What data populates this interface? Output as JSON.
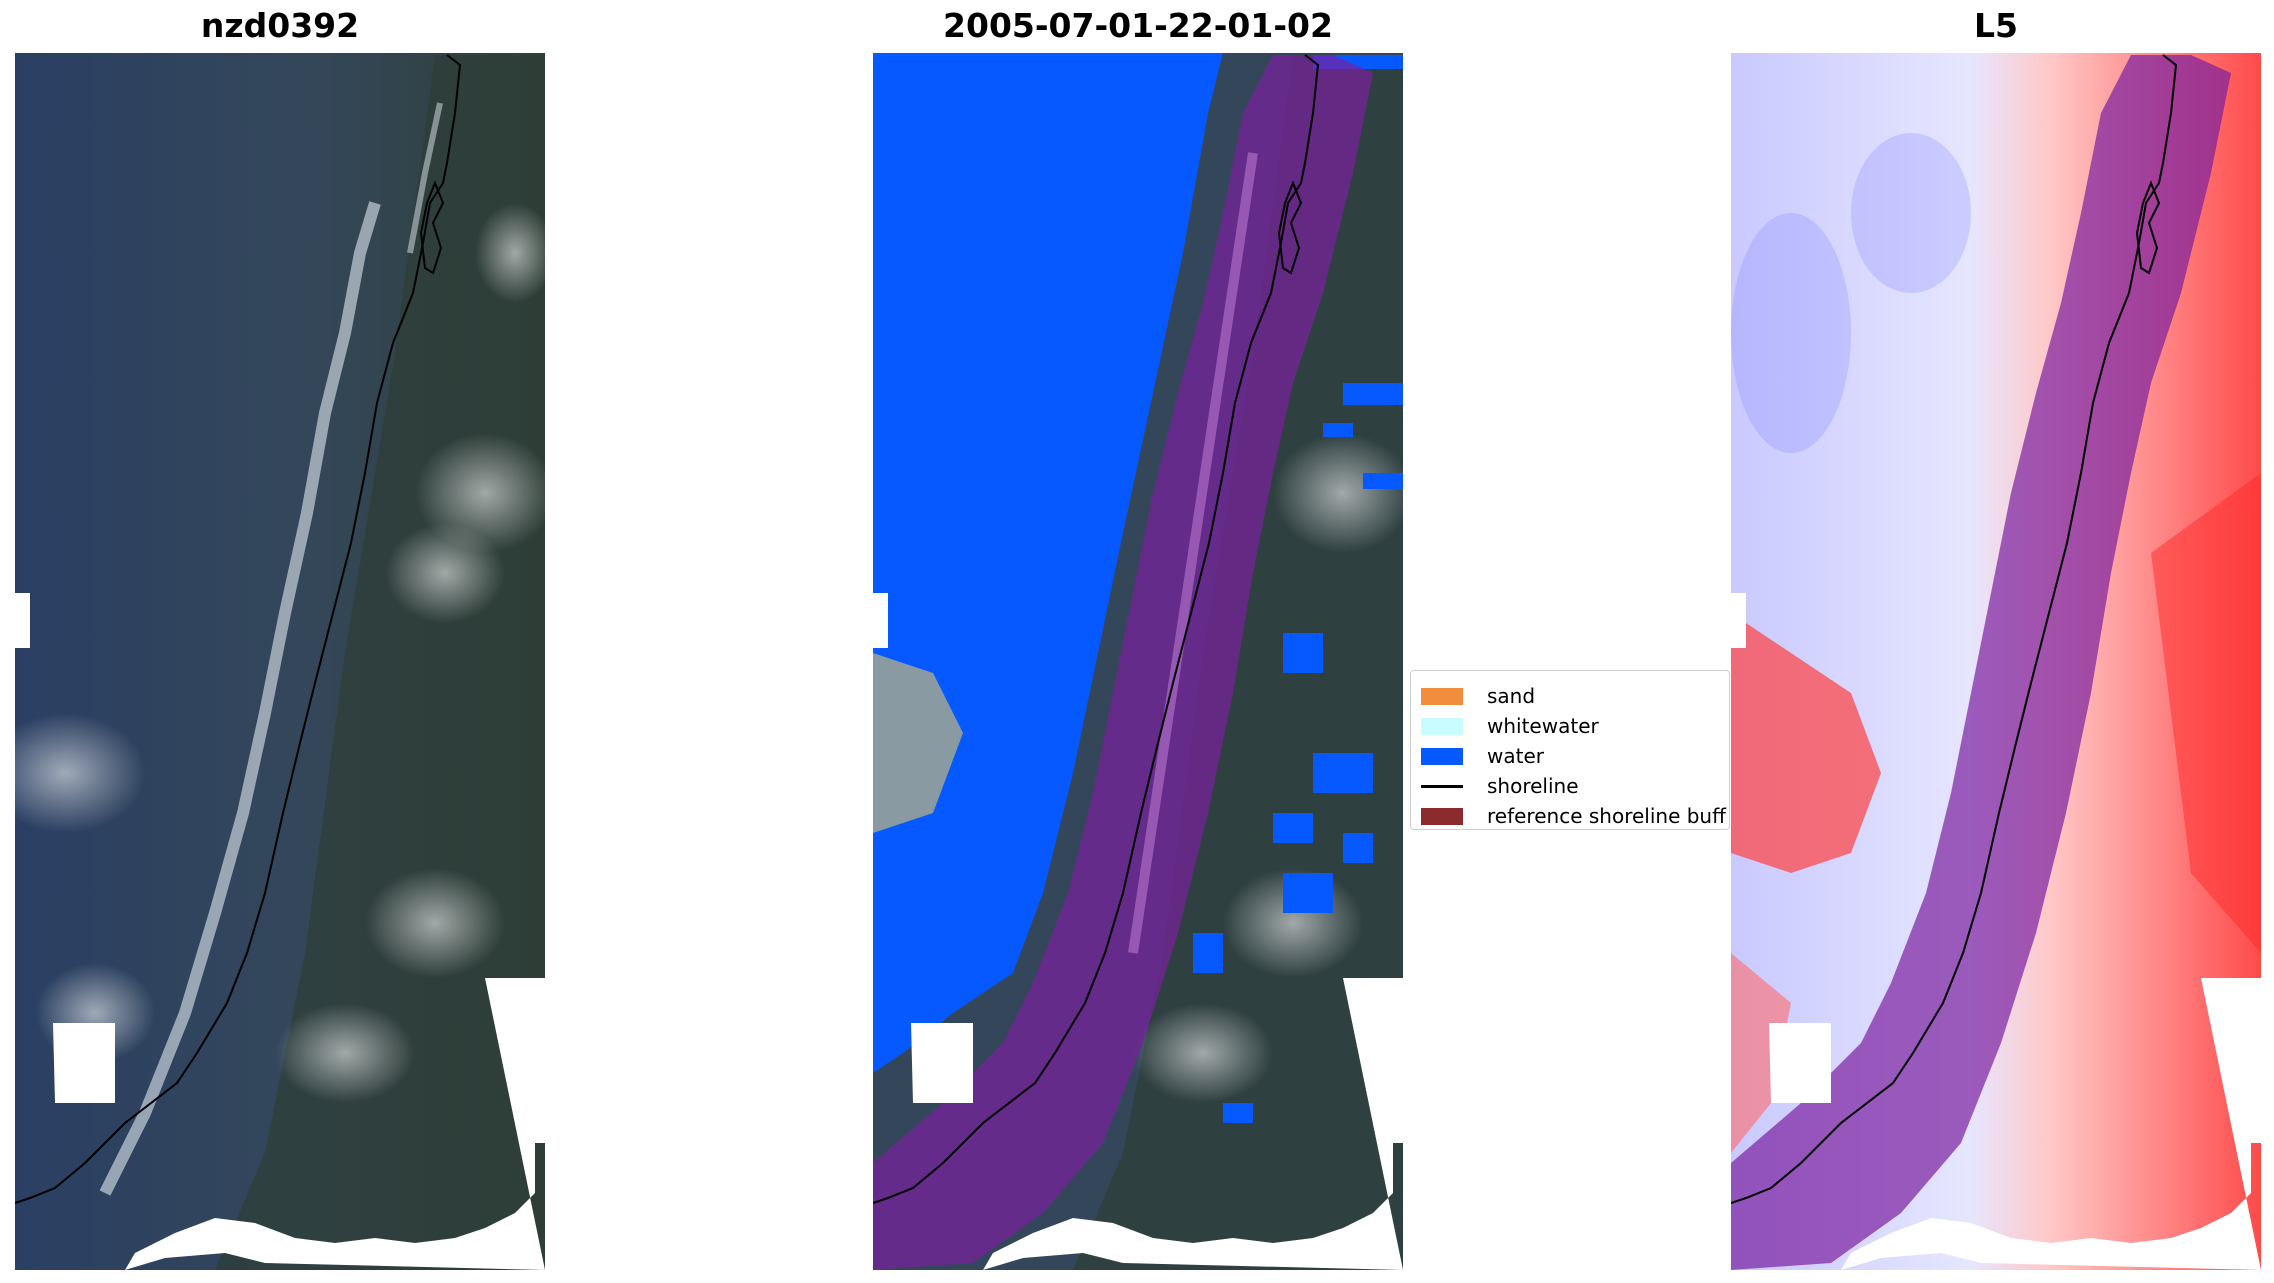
{
  "panels": [
    {
      "title": "nzd0392"
    },
    {
      "title": "2005-07-01-22-01-02"
    },
    {
      "title": "L5"
    }
  ],
  "legend": {
    "items": [
      {
        "label": "sand",
        "color": "#f28d3d"
      },
      {
        "label": "whitewater",
        "color": "#c8fcff"
      },
      {
        "label": "water",
        "color": "#0659ff"
      },
      {
        "label": "shoreline",
        "color": "#000000"
      },
      {
        "label": "reference shoreline buff",
        "color": "#8c2b2e"
      }
    ]
  },
  "colors": {
    "imagery_base": "#34475a",
    "imagery_land": "#2e3f3b",
    "water_mask": "#0659ff",
    "buffer_overlay": "#7a1fa0",
    "index_low": "#3036ff",
    "index_high": "#ff1f1f"
  }
}
